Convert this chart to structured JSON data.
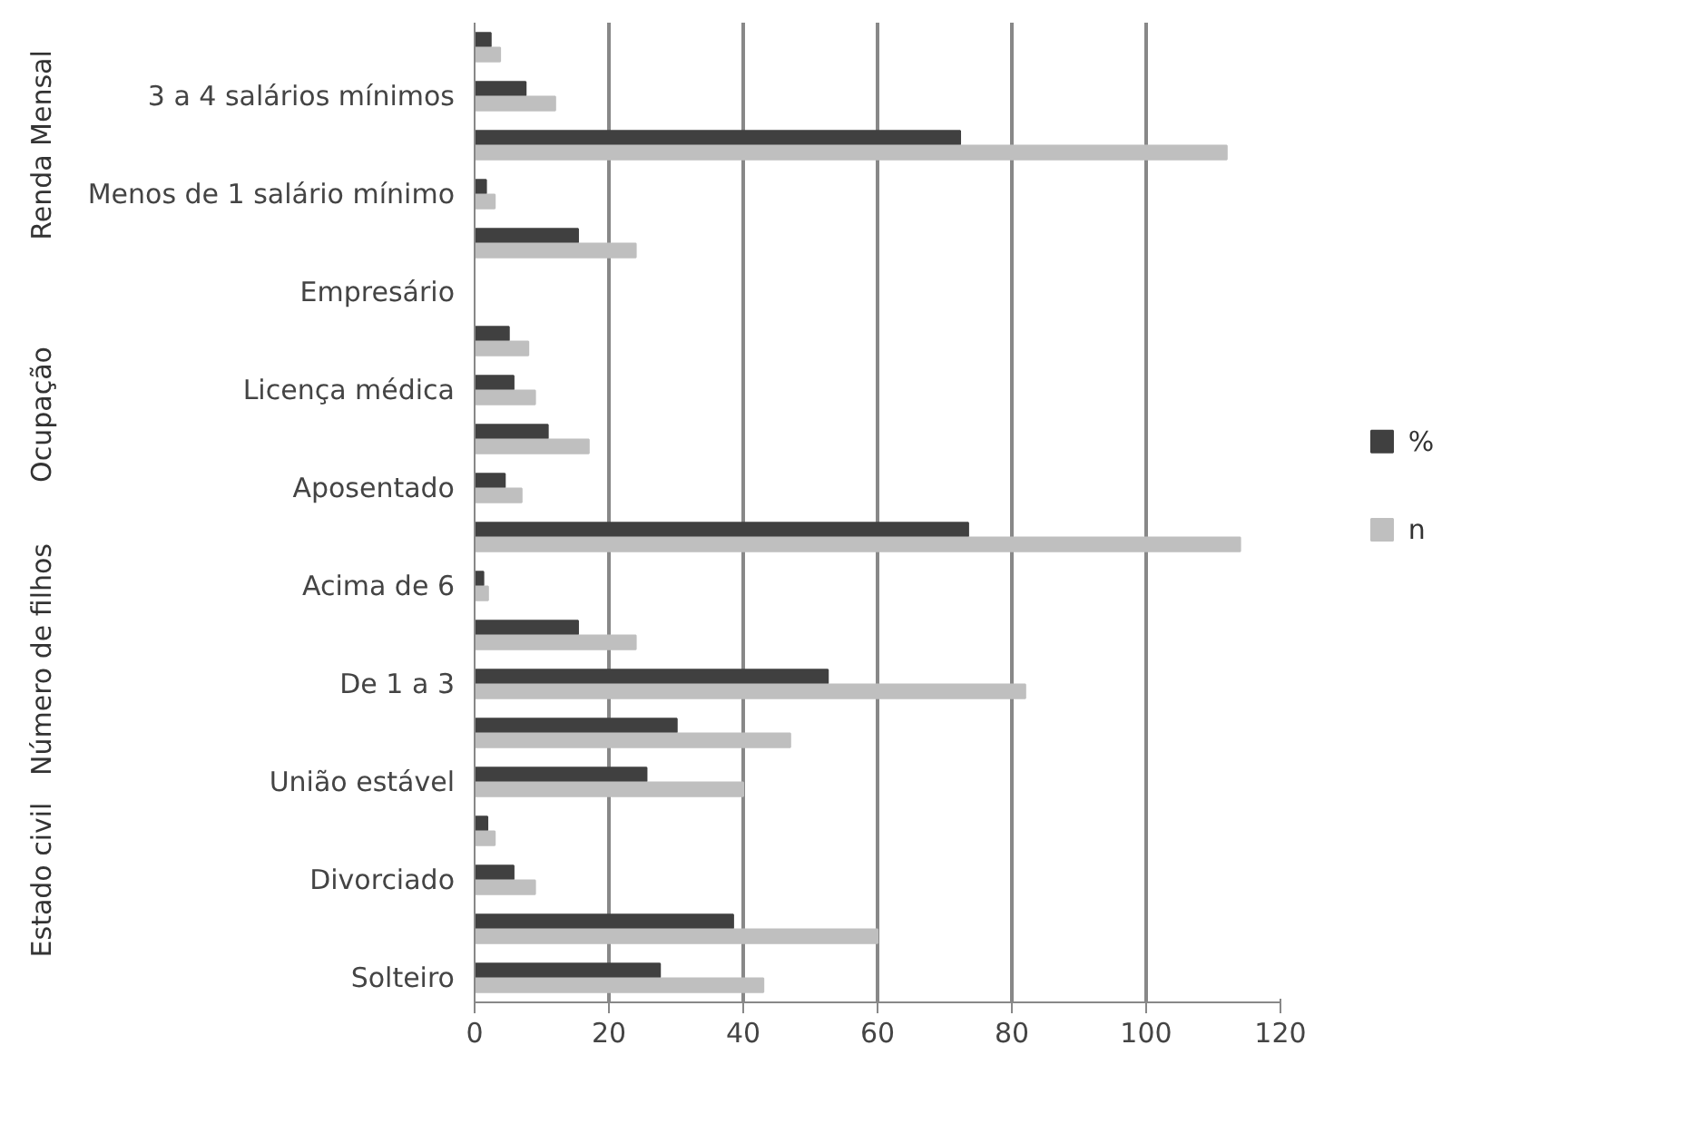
{
  "chart_data": {
    "type": "bar",
    "orientation": "horizontal",
    "categories": [
      null,
      "3 a 4 salários mínimos",
      null,
      "Menos de 1 salário mínimo",
      null,
      "Empresário",
      null,
      "Licença médica",
      null,
      "Aposentado",
      null,
      "Acima de 6",
      null,
      "De 1 a 3",
      null,
      "União estável",
      null,
      "Divorciado",
      null,
      "Solteiro"
    ],
    "series": [
      {
        "name": "%",
        "color": "#404040",
        "values": [
          2.4,
          7.6,
          72.3,
          1.7,
          15.4,
          0,
          5.1,
          5.8,
          10.9,
          4.5,
          73.5,
          1.3,
          15.4,
          52.6,
          30.1,
          25.6,
          1.9,
          5.8,
          38.5,
          27.6
        ]
      },
      {
        "name": "n",
        "color": "#bfbfbf",
        "values": [
          3.8,
          12,
          112,
          3,
          24,
          0,
          8,
          9,
          17,
          7,
          114,
          2,
          24,
          82,
          47,
          40,
          3,
          9,
          60,
          43
        ]
      }
    ],
    "xlim": [
      0,
      120
    ],
    "xticks": [
      0,
      20,
      40,
      60,
      80,
      100,
      120
    ],
    "grid": "x",
    "legend": "right",
    "annotations": [
      "Renda Mensal",
      "Ocupação",
      "Número de filhos",
      "Estado civil"
    ]
  }
}
